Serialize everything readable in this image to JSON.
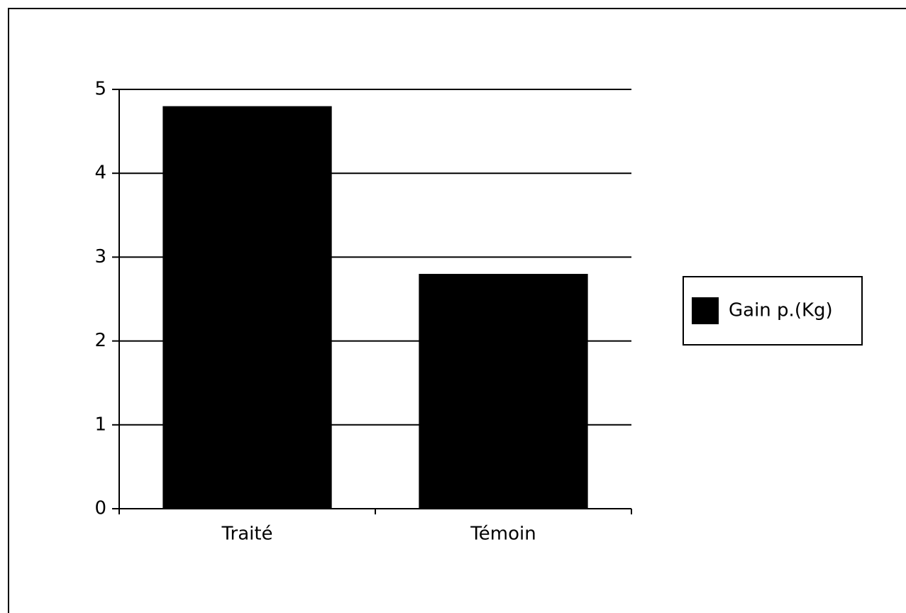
{
  "chart_data": {
    "type": "bar",
    "categories": [
      "Traité",
      "Témoin"
    ],
    "series": [
      {
        "name": "Gain p.(Kg)",
        "color": "#000000",
        "values": [
          4.8,
          2.8
        ]
      }
    ],
    "ylim": [
      0,
      5
    ],
    "yticks": [
      0,
      1,
      2,
      3,
      4,
      5
    ],
    "grid": true,
    "legend": "right"
  }
}
